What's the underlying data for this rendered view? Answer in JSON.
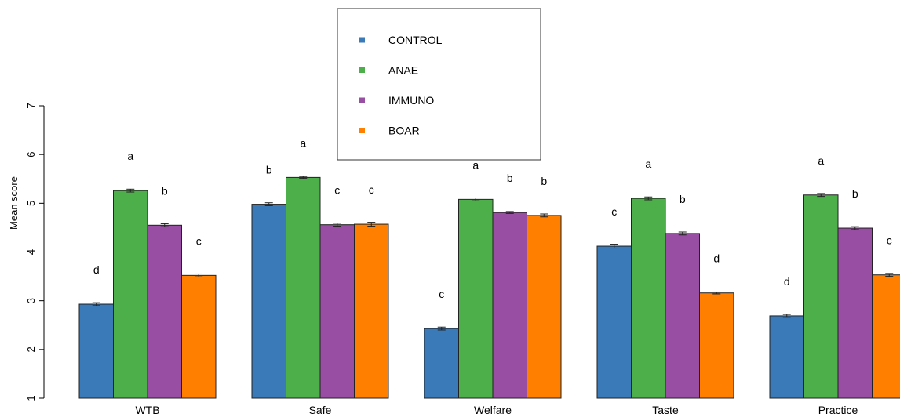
{
  "chart_data": {
    "type": "bar",
    "ylabel": "Mean score",
    "ylim": [
      1,
      7
    ],
    "yticks": [
      1,
      2,
      3,
      4,
      5,
      6,
      7
    ],
    "categories": [
      "WTB",
      "Safe",
      "Welfare",
      "Taste",
      "Practice"
    ],
    "series": [
      {
        "name": "CONTROL",
        "color": "#3a7ab8",
        "values": [
          2.93,
          4.98,
          2.43,
          4.12,
          2.69
        ],
        "errors": [
          0.03,
          0.03,
          0.03,
          0.04,
          0.03
        ],
        "labels": [
          "d",
          "b",
          "c",
          "c",
          "d"
        ]
      },
      {
        "name": "ANAE",
        "color": "#4daf4a",
        "values": [
          5.26,
          5.53,
          5.08,
          5.1,
          5.17
        ],
        "errors": [
          0.03,
          0.02,
          0.03,
          0.03,
          0.03
        ],
        "labels": [
          "a",
          "a",
          "a",
          "a",
          "a"
        ]
      },
      {
        "name": "IMMUNO",
        "color": "#984ea3",
        "values": [
          4.55,
          4.56,
          4.81,
          4.38,
          4.49
        ],
        "errors": [
          0.03,
          0.03,
          0.02,
          0.03,
          0.03
        ],
        "labels": [
          "b",
          "c",
          "b",
          "b",
          "b"
        ]
      },
      {
        "name": "BOAR",
        "color": "#ff7f00",
        "values": [
          3.52,
          4.57,
          4.75,
          3.16,
          3.53
        ],
        "errors": [
          0.03,
          0.04,
          0.03,
          0.02,
          0.03
        ],
        "labels": [
          "c",
          "c",
          "b",
          "d",
          "c"
        ]
      }
    ],
    "legend_position": "top-center"
  }
}
